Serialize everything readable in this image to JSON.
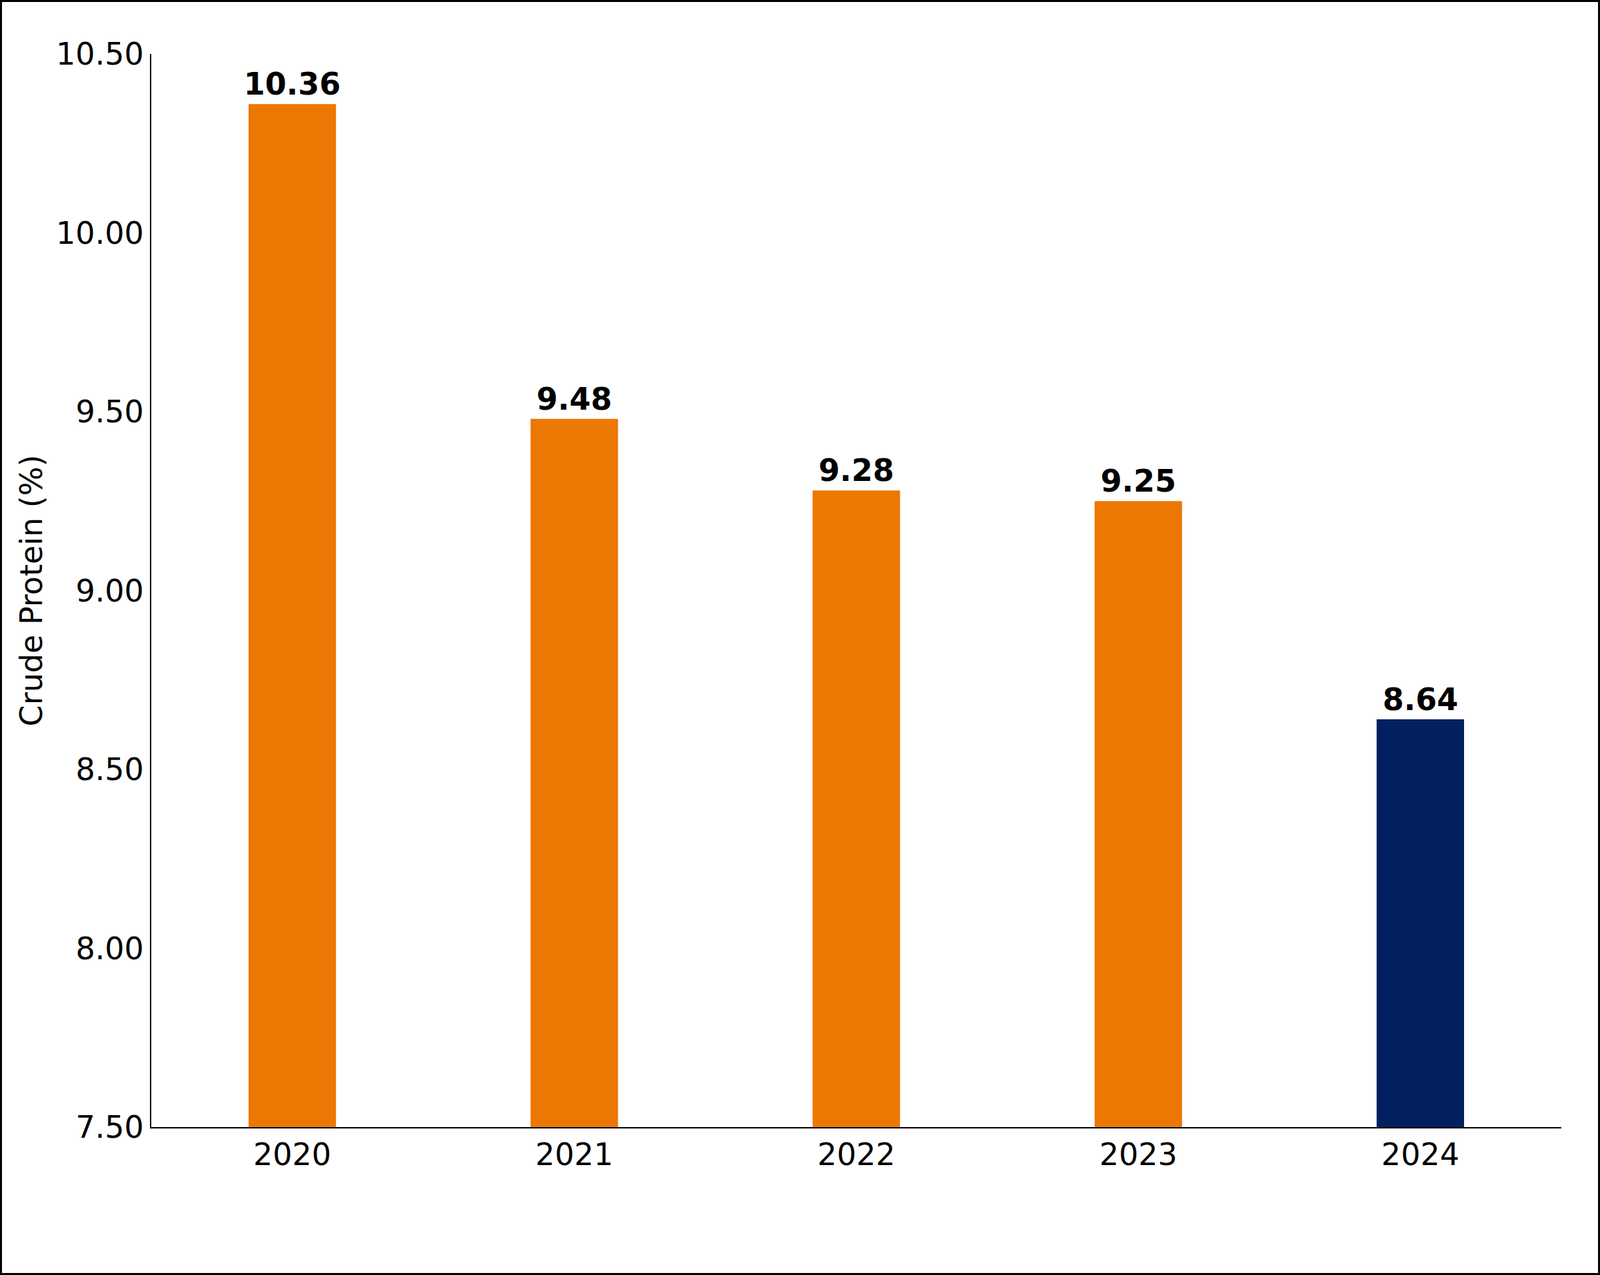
{
  "chart_data": {
    "type": "bar",
    "y_label": "Crude Protein (%)",
    "categories": [
      "2020",
      "2021",
      "2022",
      "2023",
      "2024"
    ],
    "values": [
      10.36,
      9.48,
      9.28,
      9.25,
      8.64
    ],
    "colors": [
      "#ed7703",
      "#ed7703",
      "#ed7703",
      "#ed7703",
      "#022060"
    ],
    "ylim": [
      7.5,
      10.5
    ],
    "yticks": [
      {
        "value": 7.5,
        "label": "7.50"
      },
      {
        "value": 8,
        "label": "8.00"
      },
      {
        "value": 8.5,
        "label": "8.50"
      },
      {
        "value": 9,
        "label": "9.00"
      },
      {
        "value": 9.5,
        "label": "9.50"
      },
      {
        "value": 10,
        "label": "10.00"
      },
      {
        "value": 10.5,
        "label": "10.50"
      }
    ],
    "grid": false,
    "data_labels": true
  }
}
